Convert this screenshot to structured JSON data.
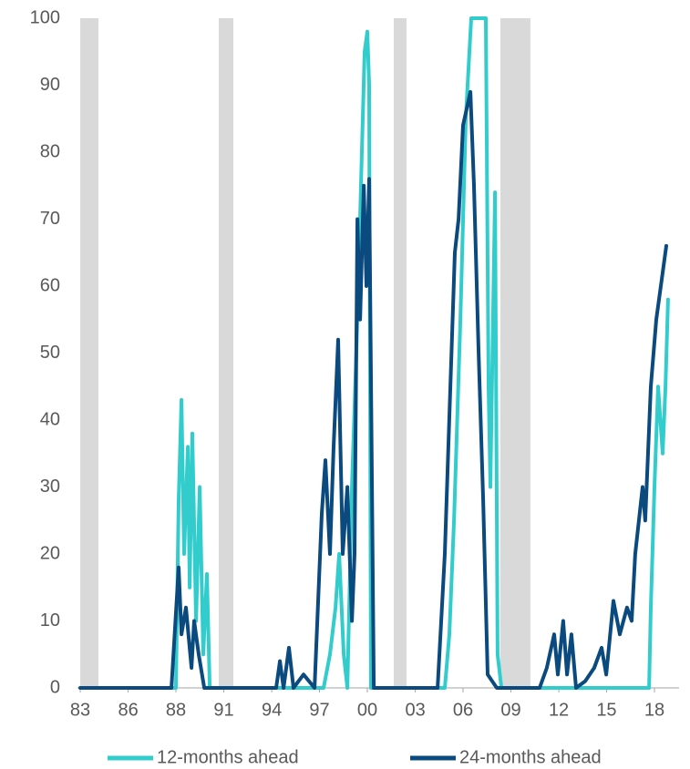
{
  "chart_data": {
    "type": "line",
    "xlim": [
      1982.83,
      2019.5
    ],
    "xticks": [
      {
        "value": 1983,
        "label": "83"
      },
      {
        "value": 1985.92,
        "label": "86"
      },
      {
        "value": 1988.83,
        "label": "88"
      },
      {
        "value": 1991.75,
        "label": "91"
      },
      {
        "value": 1994.67,
        "label": "94"
      },
      {
        "value": 1997.58,
        "label": "97"
      },
      {
        "value": 2000.5,
        "label": "00"
      },
      {
        "value": 2003.42,
        "label": "03"
      },
      {
        "value": 2006.33,
        "label": "06"
      },
      {
        "value": 2009.25,
        "label": "09"
      },
      {
        "value": 2012.17,
        "label": "12"
      },
      {
        "value": 2015.08,
        "label": "15"
      },
      {
        "value": 2018,
        "label": "18"
      }
    ],
    "ylim": [
      0,
      100
    ],
    "yticks": [
      0,
      10,
      20,
      30,
      40,
      50,
      60,
      70,
      80,
      90,
      100
    ],
    "grid": false,
    "legend": "bottom",
    "shaded_periods": {
      "color": "#d9d9d9",
      "ranges": [
        [
          1983.0,
          1984.11
        ],
        [
          1991.44,
          1992.33
        ],
        [
          2002.11,
          2002.89
        ],
        [
          2008.61,
          2010.44
        ]
      ]
    },
    "series": [
      {
        "name": "12-months ahead",
        "color": "#33cccc",
        "x": [
          1983.0,
          1988.83,
          1989.0,
          1989.17,
          1989.33,
          1989.56,
          1989.67,
          1989.83,
          1990.06,
          1990.28,
          1990.5,
          1990.72,
          1990.89,
          1997.83,
          1998.22,
          1998.56,
          1998.78,
          1999.06,
          1999.28,
          1999.56,
          1999.89,
          2000.11,
          2000.33,
          2000.5,
          2000.61,
          2000.72,
          2005.22,
          2005.5,
          2005.78,
          2006.17,
          2006.5,
          2006.83,
          2007.72,
          2007.89,
          2008.0,
          2008.28,
          2008.44,
          2008.67,
          2017.67,
          2017.78,
          2018.0,
          2018.22,
          2018.5,
          2018.67,
          2018.83
        ],
        "values": [
          0,
          0,
          28,
          43,
          20,
          36,
          15,
          38,
          10,
          30,
          5,
          17,
          0,
          0,
          5,
          12,
          20,
          5,
          0,
          30,
          55,
          75,
          95,
          98,
          90,
          0,
          0,
          8,
          25,
          55,
          85,
          100,
          100,
          45,
          30,
          74,
          5,
          0,
          0,
          12,
          30,
          45,
          35,
          45,
          58
        ]
      },
      {
        "name": "24-months ahead",
        "color": "#0b4a7e",
        "x": [
          1983.0,
          1988.56,
          1989.0,
          1989.17,
          1989.44,
          1989.78,
          1989.94,
          1990.22,
          1990.56,
          1994.94,
          1995.17,
          1995.39,
          1995.72,
          1996.0,
          1996.61,
          1997.28,
          1997.72,
          1997.94,
          1998.22,
          1998.44,
          1998.72,
          1999.0,
          1999.28,
          1999.56,
          1999.72,
          1999.89,
          2000.06,
          2000.28,
          2000.44,
          2000.61,
          2000.89,
          2004.78,
          2005.22,
          2005.56,
          2005.83,
          2006.06,
          2006.33,
          2006.78,
          2007.0,
          2007.28,
          2007.56,
          2007.83,
          2008.39,
          2011.0,
          2011.44,
          2011.89,
          2012.11,
          2012.44,
          2012.67,
          2012.94,
          2013.22,
          2013.78,
          2014.33,
          2014.78,
          2015.06,
          2015.5,
          2015.89,
          2016.33,
          2016.61,
          2016.83,
          2017.28,
          2017.44,
          2017.78,
          2018.11,
          2018.39,
          2018.72
        ],
        "values": [
          0,
          0,
          18,
          8,
          12,
          3,
          10,
          5,
          0,
          0,
          4,
          0,
          6,
          0,
          2,
          0,
          26,
          34,
          20,
          36,
          52,
          20,
          30,
          10,
          20,
          70,
          55,
          75,
          60,
          76,
          0,
          0,
          20,
          45,
          65,
          70,
          84,
          89,
          75,
          50,
          28,
          2,
          0,
          0,
          3,
          8,
          2,
          10,
          2,
          8,
          0,
          1,
          3,
          6,
          2,
          13,
          8,
          12,
          10,
          20,
          30,
          25,
          45,
          55,
          60,
          66
        ]
      }
    ]
  }
}
